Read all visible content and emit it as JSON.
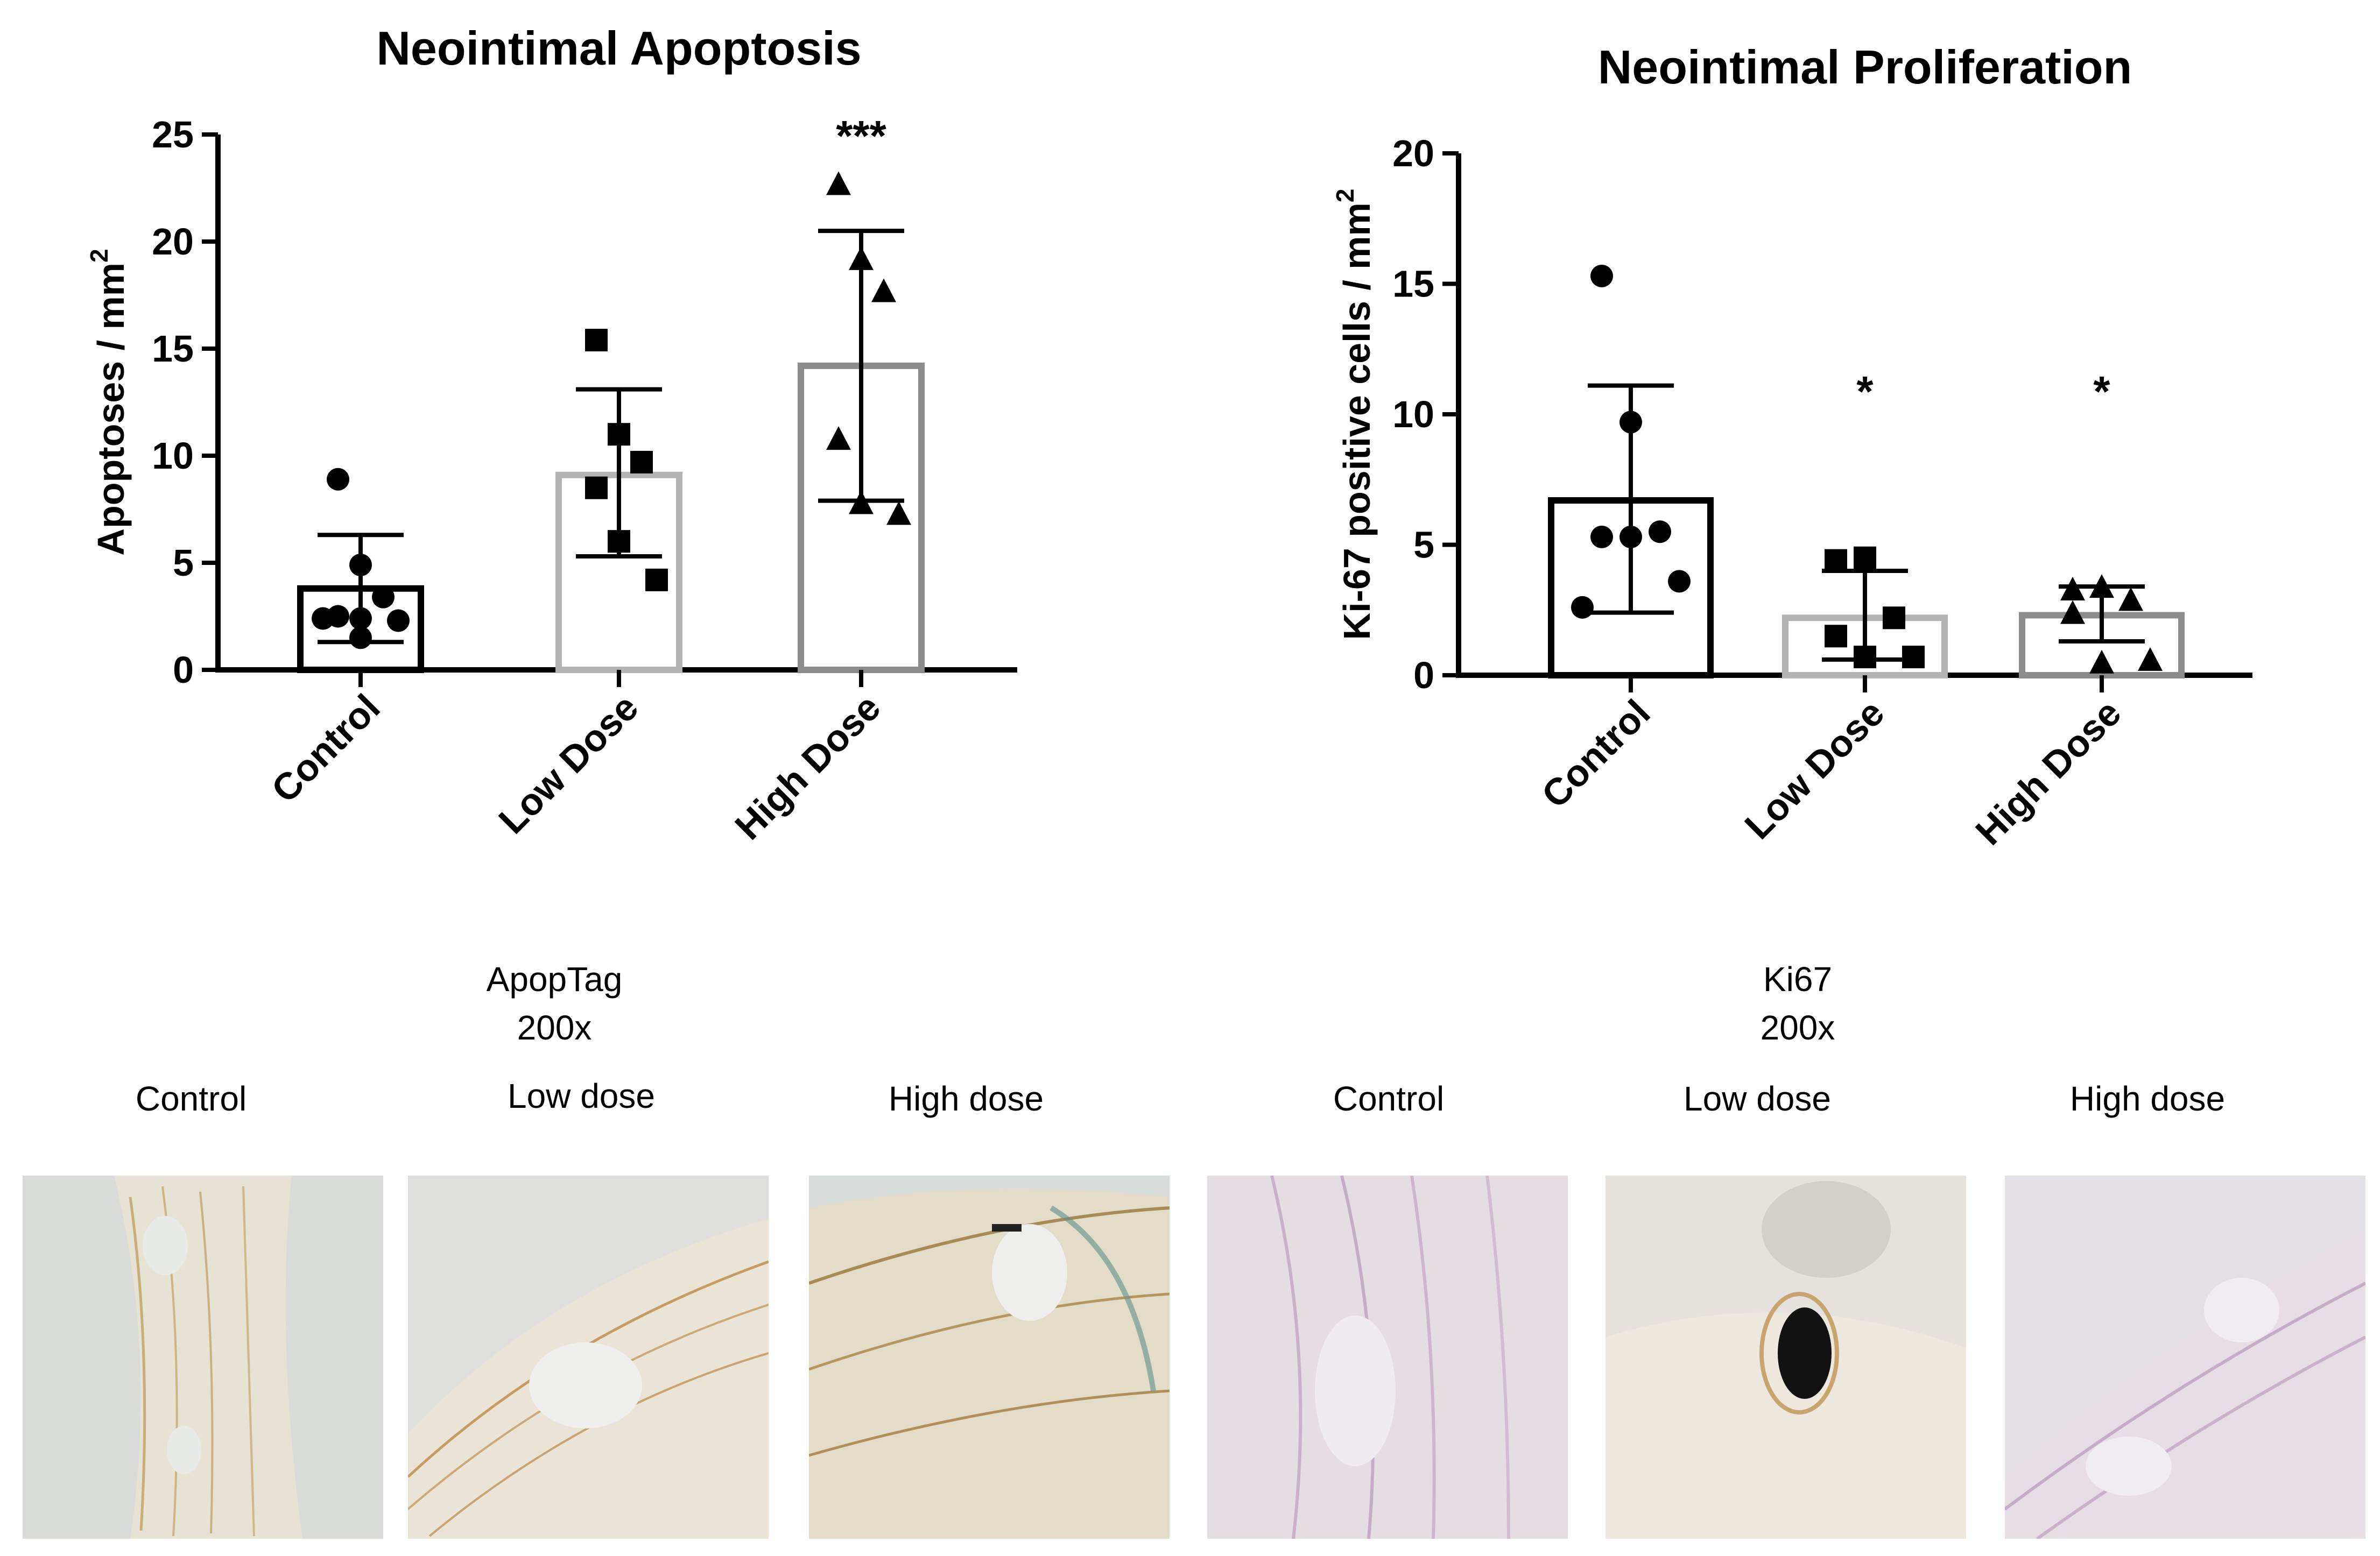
{
  "chart_data": [
    {
      "type": "bar",
      "title": "Neointimal Apoptosis",
      "ylabel": "Apoptoses / mm",
      "ylabel_sup": "2",
      "ylim": [
        0,
        25
      ],
      "yticks": [
        0,
        5,
        10,
        15,
        20,
        25
      ],
      "categories": [
        "Control",
        "Low Dose",
        "High Dose"
      ],
      "values": [
        3.8,
        9.1,
        14.2
      ],
      "sd_low": [
        1.3,
        5.3,
        7.9
      ],
      "sd_high": [
        6.3,
        13.1,
        20.5
      ],
      "bar_colors": [
        "#000000",
        "#b3b3b3",
        "#8c8c8c"
      ],
      "markers": [
        "circle",
        "square",
        "triangle"
      ],
      "points": [
        [
          8.9,
          4.9,
          3.4,
          2.5,
          2.4,
          2.3,
          2.4,
          1.5
        ],
        [
          15.4,
          11.0,
          9.7,
          8.5,
          6.0,
          4.2
        ],
        [
          22.7,
          19.2,
          17.7,
          10.8,
          7.8,
          7.3
        ]
      ],
      "significance": [
        "",
        "",
        "***"
      ]
    },
    {
      "type": "bar",
      "title": "Neointimal Proliferation",
      "ylabel": "Ki-67 positive cells / mm",
      "ylabel_sup": "2",
      "ylim": [
        0,
        20
      ],
      "yticks": [
        0,
        5,
        10,
        15,
        20
      ],
      "categories": [
        "Control",
        "Low Dose",
        "High Dose"
      ],
      "values": [
        6.7,
        2.2,
        2.3
      ],
      "sd_low": [
        2.4,
        0.6,
        1.3
      ],
      "sd_high": [
        11.1,
        4.0,
        3.4
      ],
      "bar_colors": [
        "#000000",
        "#b3b3b3",
        "#8c8c8c"
      ],
      "markers": [
        "circle",
        "square",
        "triangle"
      ],
      "points": [
        [
          15.3,
          9.7,
          5.5,
          5.3,
          5.3,
          3.6,
          2.6
        ],
        [
          4.4,
          4.5,
          2.2,
          1.5,
          0.7,
          0.7
        ],
        [
          3.3,
          3.4,
          2.9,
          2.4,
          0.5,
          0.6
        ]
      ],
      "significance": [
        "",
        "*",
        "*"
      ]
    }
  ],
  "panels": {
    "left_title": "ApopTag",
    "left_magnification": "200x",
    "right_title": "Ki67",
    "right_magnification": "200x",
    "labels": [
      "Control",
      "Low dose",
      "High dose",
      "Control",
      "Low dose",
      "High dose"
    ]
  }
}
